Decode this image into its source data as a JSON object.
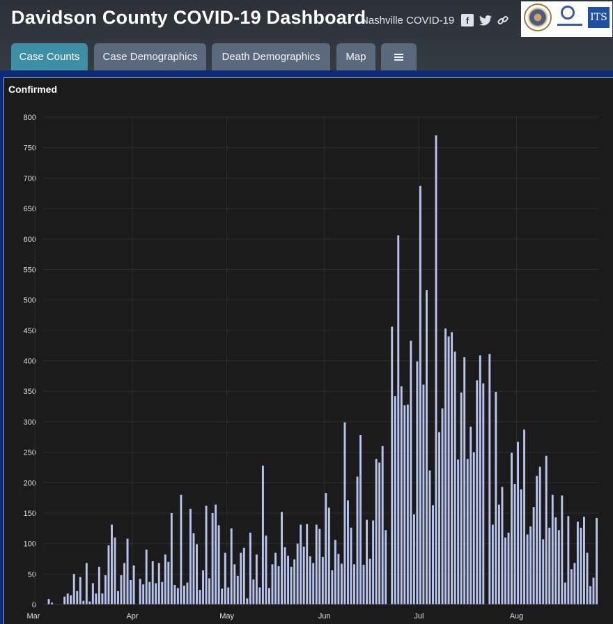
{
  "header": {
    "title": "Davidson County COVID-19 Dashboard",
    "subtitle": "Nashville COVID-19",
    "social_icons": [
      "facebook-icon",
      "twitter-icon",
      "link-icon"
    ],
    "logos": [
      "metro-nashville-seal-logo",
      "metro-public-health-logo",
      "its-logo"
    ],
    "logo_text": "ITS"
  },
  "tabs": [
    {
      "label": "Case Counts",
      "active": true
    },
    {
      "label": "Case Demographics",
      "active": false
    },
    {
      "label": "Death Demographics",
      "active": false
    },
    {
      "label": "Map",
      "active": false
    },
    {
      "label": "",
      "icon": "list-icon",
      "active": false
    }
  ],
  "colors": {
    "accent": "#3c8fa5",
    "bar": "#b8c4ec",
    "panel_bg": "#1b1b1b",
    "blue_band": "#0e2b7a"
  },
  "chart_data": {
    "type": "bar",
    "title": "Confirmed",
    "xlabel": "",
    "ylabel": "",
    "ylim": [
      0,
      800
    ],
    "yticks": [
      0,
      50,
      100,
      150,
      200,
      250,
      300,
      350,
      400,
      450,
      500,
      550,
      600,
      650,
      700,
      750,
      800
    ],
    "month_labels": [
      "Mar",
      "Apr",
      "May",
      "Jun",
      "Jul",
      "Aug"
    ],
    "grid": true,
    "legend": "none",
    "start_date": "2020-03-05",
    "values": [
      9,
      3,
      0,
      0,
      0,
      13,
      18,
      15,
      50,
      22,
      45,
      6,
      68,
      5,
      35,
      18,
      62,
      18,
      48,
      97,
      131,
      110,
      22,
      48,
      68,
      108,
      40,
      64,
      0,
      42,
      33,
      90,
      37,
      71,
      35,
      68,
      37,
      82,
      70,
      150,
      32,
      27,
      180,
      31,
      36,
      157,
      117,
      99,
      24,
      56,
      162,
      43,
      150,
      164,
      130,
      26,
      85,
      28,
      125,
      66,
      47,
      85,
      93,
      10,
      118,
      41,
      82,
      28,
      228,
      113,
      27,
      66,
      85,
      63,
      152,
      94,
      80,
      62,
      74,
      100,
      131,
      95,
      132,
      79,
      68,
      131,
      124,
      78,
      183,
      159,
      56,
      106,
      83,
      67,
      299,
      171,
      126,
      66,
      210,
      278,
      65,
      139,
      75,
      138,
      239,
      233,
      260,
      122,
      0,
      456,
      342,
      606,
      358,
      327,
      328,
      433,
      148,
      399,
      687,
      361,
      516,
      220,
      163,
      770,
      283,
      322,
      453,
      440,
      447,
      415,
      238,
      348,
      406,
      239,
      292,
      250,
      368,
      409,
      363,
      0,
      411,
      131,
      349,
      164,
      193,
      110,
      118,
      249,
      198,
      267,
      189,
      287,
      115,
      128,
      160,
      211,
      226,
      107,
      244,
      126,
      180,
      143,
      122,
      179,
      36,
      145,
      58,
      68,
      136,
      126,
      144,
      85,
      30,
      44,
      142
    ]
  }
}
